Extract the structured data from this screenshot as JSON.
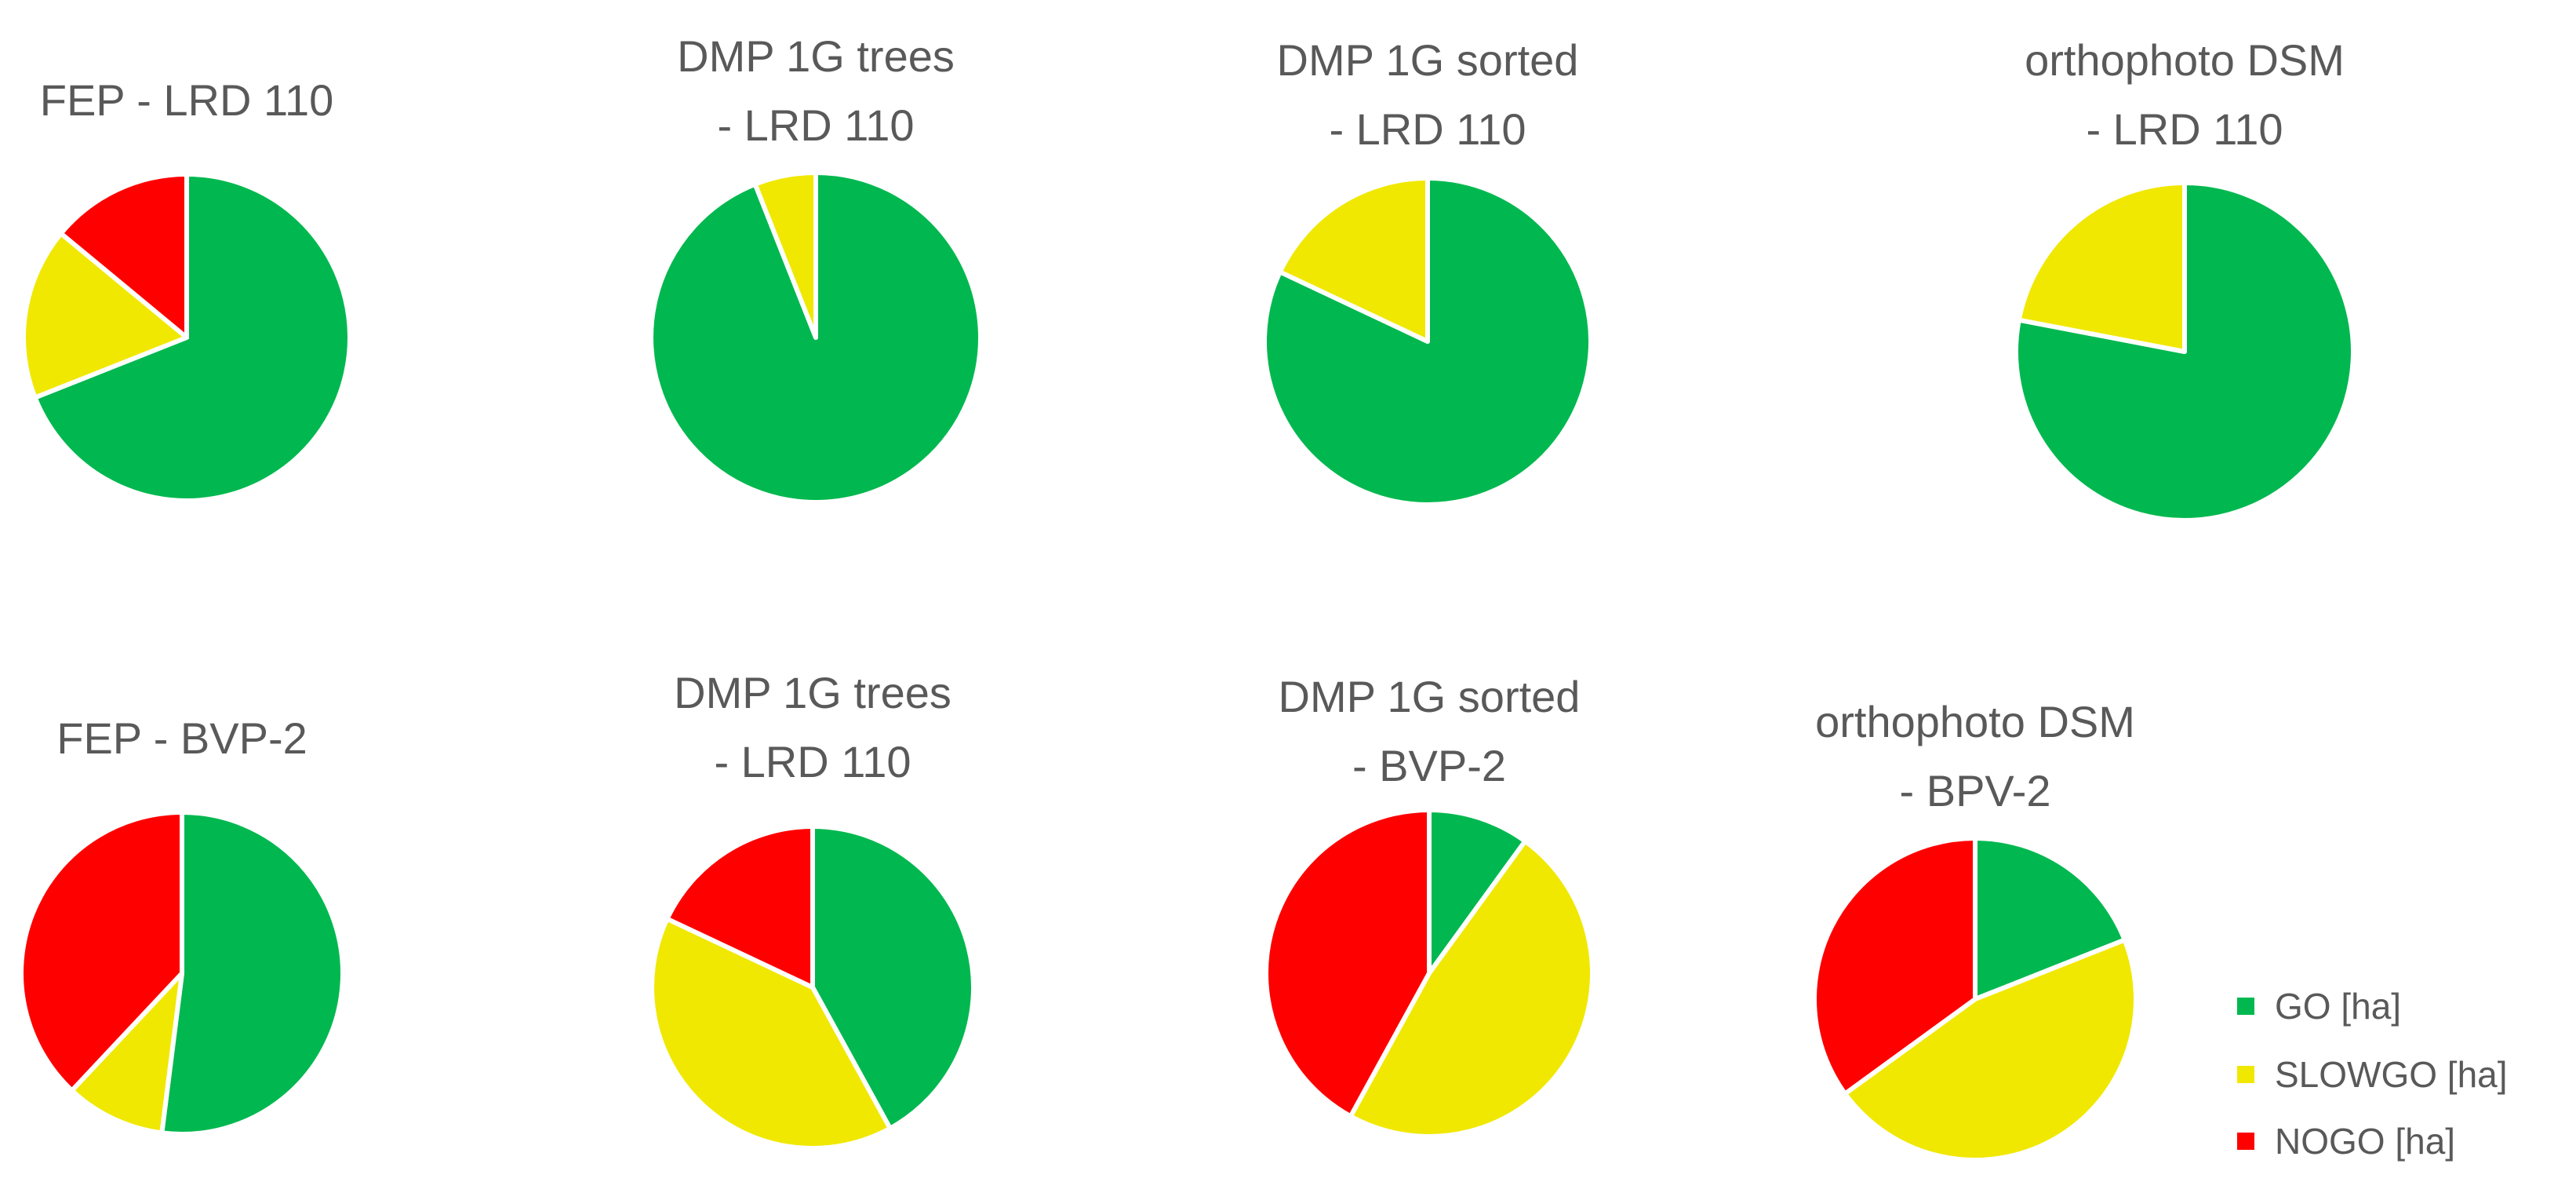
{
  "colors": {
    "go": "#00b84f",
    "slowgo": "#f0e800",
    "nogo": "#ff0000",
    "text": "#595959",
    "slice_border": "#ffffff"
  },
  "legend": [
    {
      "key": "go",
      "label": "GO [ha]"
    },
    {
      "key": "slowgo",
      "label": "SLOWGO [ha]"
    },
    {
      "key": "nogo",
      "label": "NOGO [ha]"
    }
  ],
  "chart_data": [
    {
      "type": "pie",
      "title_lines": [
        "FEP - LRD 110"
      ],
      "categories": [
        "GO [ha]",
        "SLOWGO [ha]",
        "NOGO [ha]"
      ],
      "values": [
        69,
        17,
        14
      ]
    },
    {
      "type": "pie",
      "title_lines": [
        "DMP 1G trees",
        "- LRD 110"
      ],
      "categories": [
        "GO [ha]",
        "SLOWGO [ha]",
        "NOGO [ha]"
      ],
      "values": [
        94,
        6,
        0
      ]
    },
    {
      "type": "pie",
      "title_lines": [
        "DMP 1G sorted",
        "- LRD 110"
      ],
      "categories": [
        "GO [ha]",
        "SLOWGO [ha]",
        "NOGO [ha]"
      ],
      "values": [
        82,
        18,
        0
      ]
    },
    {
      "type": "pie",
      "title_lines": [
        "orthophoto DSM",
        "- LRD 110"
      ],
      "categories": [
        "GO [ha]",
        "SLOWGO [ha]",
        "NOGO [ha]"
      ],
      "values": [
        78,
        22,
        0
      ]
    },
    {
      "type": "pie",
      "title_lines": [
        "FEP - BVP-2"
      ],
      "categories": [
        "GO [ha]",
        "SLOWGO [ha]",
        "NOGO [ha]"
      ],
      "values": [
        52,
        10,
        38
      ]
    },
    {
      "type": "pie",
      "title_lines": [
        "DMP 1G trees",
        "- LRD 110"
      ],
      "categories": [
        "GO [ha]",
        "SLOWGO [ha]",
        "NOGO [ha]"
      ],
      "values": [
        42,
        40,
        18
      ]
    },
    {
      "type": "pie",
      "title_lines": [
        "DMP 1G sorted",
        "- BVP-2"
      ],
      "categories": [
        "GO [ha]",
        "SLOWGO [ha]",
        "NOGO [ha]"
      ],
      "values": [
        10,
        48,
        42
      ]
    },
    {
      "type": "pie",
      "title_lines": [
        "orthophoto DSM",
        "- BPV-2"
      ],
      "categories": [
        "GO [ha]",
        "SLOWGO [ha]",
        "NOGO [ha]"
      ],
      "values": [
        19,
        46,
        35
      ]
    }
  ]
}
